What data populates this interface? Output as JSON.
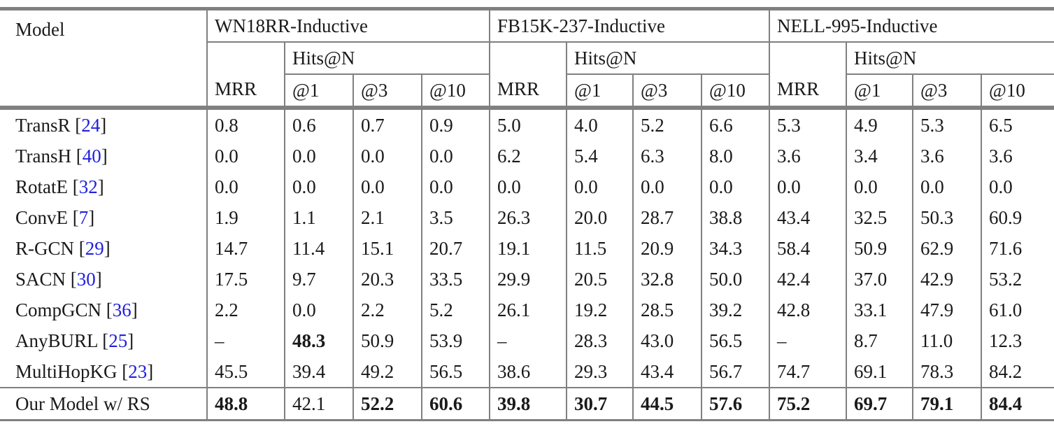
{
  "colors": {
    "rule_gray": "#808080",
    "citation_blue": "#2020e0",
    "text": "#1a1a1a",
    "background": "#ffffff"
  },
  "table": {
    "model_header": "Model",
    "groups": [
      {
        "name": "WN18RR-Inductive",
        "mrr_label": "MRR",
        "hits_label": "Hits@N",
        "hits_cols": [
          "@1",
          "@3",
          "@10"
        ]
      },
      {
        "name": "FB15K-237-Inductive",
        "mrr_label": "MRR",
        "hits_label": "Hits@N",
        "hits_cols": [
          "@1",
          "@3",
          "@10"
        ]
      },
      {
        "name": "NELL-995-Inductive",
        "mrr_label": "MRR",
        "hits_label": "Hits@N",
        "hits_cols": [
          "@1",
          "@3",
          "@10"
        ]
      }
    ],
    "rows": [
      {
        "model": "TransR",
        "cite": "24",
        "values": [
          "0.8",
          "0.6",
          "0.7",
          "0.9",
          "5.0",
          "4.0",
          "5.2",
          "6.6",
          "5.3",
          "4.9",
          "5.3",
          "6.5"
        ],
        "bold": []
      },
      {
        "model": "TransH",
        "cite": "40",
        "values": [
          "0.0",
          "0.0",
          "0.0",
          "0.0",
          "6.2",
          "5.4",
          "6.3",
          "8.0",
          "3.6",
          "3.4",
          "3.6",
          "3.6"
        ],
        "bold": []
      },
      {
        "model": "RotatE",
        "cite": "32",
        "values": [
          "0.0",
          "0.0",
          "0.0",
          "0.0",
          "0.0",
          "0.0",
          "0.0",
          "0.0",
          "0.0",
          "0.0",
          "0.0",
          "0.0"
        ],
        "bold": []
      },
      {
        "model": "ConvE",
        "cite": "7",
        "values": [
          "1.9",
          "1.1",
          "2.1",
          "3.5",
          "26.3",
          "20.0",
          "28.7",
          "38.8",
          "43.4",
          "32.5",
          "50.3",
          "60.9"
        ],
        "bold": []
      },
      {
        "model": "R-GCN",
        "cite": "29",
        "values": [
          "14.7",
          "11.4",
          "15.1",
          "20.7",
          "19.1",
          "11.5",
          "20.9",
          "34.3",
          "58.4",
          "50.9",
          "62.9",
          "71.6"
        ],
        "bold": []
      },
      {
        "model": "SACN",
        "cite": "30",
        "values": [
          "17.5",
          "9.7",
          "20.3",
          "33.5",
          "29.9",
          "20.5",
          "32.8",
          "50.0",
          "42.4",
          "37.0",
          "42.9",
          "53.2"
        ],
        "bold": []
      },
      {
        "model": "CompGCN",
        "cite": "36",
        "values": [
          "2.2",
          "0.0",
          "2.2",
          "5.2",
          "26.1",
          "19.2",
          "28.5",
          "39.2",
          "42.8",
          "33.1",
          "47.9",
          "61.0"
        ],
        "bold": []
      },
      {
        "model": "AnyBURL",
        "cite": "25",
        "values": [
          "–",
          "48.3",
          "50.9",
          "53.9",
          "–",
          "28.3",
          "43.0",
          "56.5",
          "–",
          "8.7",
          "11.0",
          "12.3"
        ],
        "bold": [
          1
        ]
      },
      {
        "model": "MultiHopKG",
        "cite": "23",
        "values": [
          "45.5",
          "39.4",
          "49.2",
          "56.5",
          "38.6",
          "29.3",
          "43.4",
          "56.7",
          "74.7",
          "69.1",
          "78.3",
          "84.2"
        ],
        "bold": []
      },
      {
        "model": "Our Model w/ RS",
        "cite": null,
        "values": [
          "48.8",
          "42.1",
          "52.2",
          "60.6",
          "39.8",
          "30.7",
          "44.5",
          "57.6",
          "75.2",
          "69.7",
          "79.1",
          "84.4"
        ],
        "bold": [
          0,
          2,
          3,
          4,
          5,
          6,
          7,
          8,
          9,
          10,
          11
        ],
        "highlight_row": true
      }
    ]
  }
}
